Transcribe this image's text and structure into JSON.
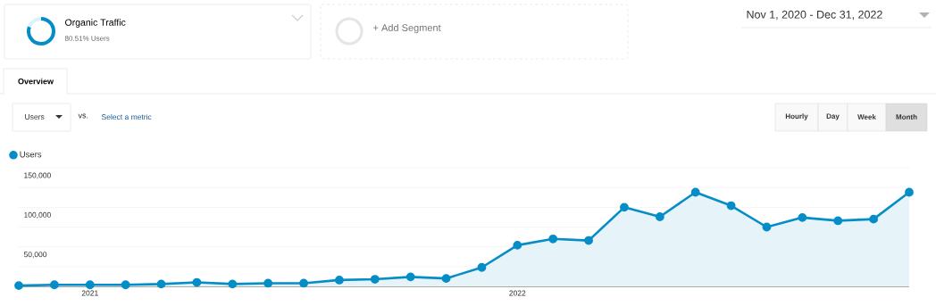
{
  "chart_data": {
    "type": "area",
    "title": "Organic Traffic",
    "subtitle": "80.51% Users",
    "annotations": [
      "+ Add Segment",
      "Nov 1, 2020 - Dec 31, 2022",
      "Overview",
      "Users",
      "vs.",
      "Select a metric",
      "Hourly",
      "Day",
      "Week",
      "Month"
    ],
    "categories": [
      null,
      null,
      "2021",
      null,
      null,
      null,
      null,
      null,
      null,
      null,
      null,
      null,
      null,
      null,
      "2022",
      null,
      null,
      null,
      null,
      null,
      null,
      null,
      null,
      null,
      null,
      null
    ],
    "series": [
      {
        "name": "Users",
        "color": "#058dc7",
        "values": [
          1000,
          2000,
          2000,
          2000,
          3000,
          5000,
          3000,
          4000,
          4000,
          8000,
          9000,
          12000,
          10000,
          24000,
          52000,
          60000,
          58000,
          100000,
          88000,
          119000,
          102000,
          75000,
          87000,
          83000,
          85000,
          119000
        ]
      }
    ],
    "ylim": [
      0,
      150000
    ],
    "yticks": [
      {
        "value": 0,
        "label": null
      },
      {
        "value": 25000,
        "label": null
      },
      {
        "value": 50000,
        "label": "50,000"
      },
      {
        "value": 75000,
        "label": null
      },
      {
        "value": 100000,
        "label": "100,000"
      },
      {
        "value": 125000,
        "label": null
      },
      {
        "value": 150000,
        "label": "150,000"
      }
    ],
    "grid": "y",
    "legend": "top left",
    "marker": "circle",
    "line_style": "solid"
  }
}
